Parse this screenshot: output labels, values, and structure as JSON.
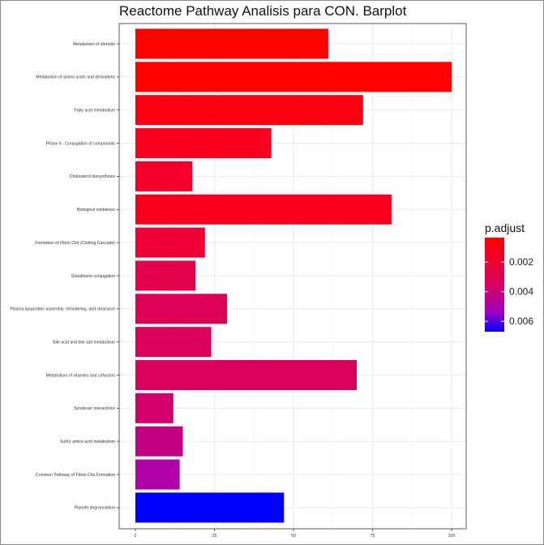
{
  "chart_data": {
    "type": "bar",
    "orientation": "horizontal",
    "title": "Reactome Pathway Analisis para CON. Barplot",
    "xlabel": "",
    "ylabel": "",
    "xlim": [
      0,
      100
    ],
    "x_ticks": [
      "0",
      "25",
      "50",
      "75",
      "100"
    ],
    "x_tick_values": [
      0,
      25,
      50,
      75,
      100
    ],
    "grid": true,
    "categories": [
      "Metabolism of steroids",
      "Metabolism of amino acids and derivatives",
      "Fatty acid metabolism",
      "Phase II - Conjugation of compounds",
      "Cholesterol biosynthesis",
      "Biological oxidations",
      "Formation of Fibrin Clot (Clotting Cascade)",
      "Glutathione conjugation",
      "Plasma lipoprotein assembly, remodeling, and clearance",
      "Bile acid and bile salt metabolism",
      "Metabolism of vitamins and cofactors",
      "Syndecan interactions",
      "Sulfur amino acid metabolism",
      "Common Pathway of Fibrin Clot Formation",
      "Platelet degranulation"
    ],
    "values": [
      61,
      100,
      72,
      43,
      18,
      81,
      22,
      19,
      29,
      24,
      70,
      12,
      15,
      14,
      47
    ],
    "bar_colors": [
      "#ff0000",
      "#ff0000",
      "#fb0010",
      "#fa0020",
      "#f5002a",
      "#f8001c",
      "#ee0034",
      "#e1004e",
      "#dc0057",
      "#db0059",
      "#da005b",
      "#d2006a",
      "#c40082",
      "#b000a8",
      "#0000ff"
    ],
    "legend": {
      "title": "p.adjust",
      "placement": "right",
      "labels": [
        "0.002",
        "0.004",
        "0.006"
      ],
      "label_values": [
        0.002,
        0.004,
        0.006
      ],
      "range": [
        0.00035,
        0.0067
      ],
      "color_low": "#ff0000",
      "color_high": "#0000ff"
    }
  }
}
